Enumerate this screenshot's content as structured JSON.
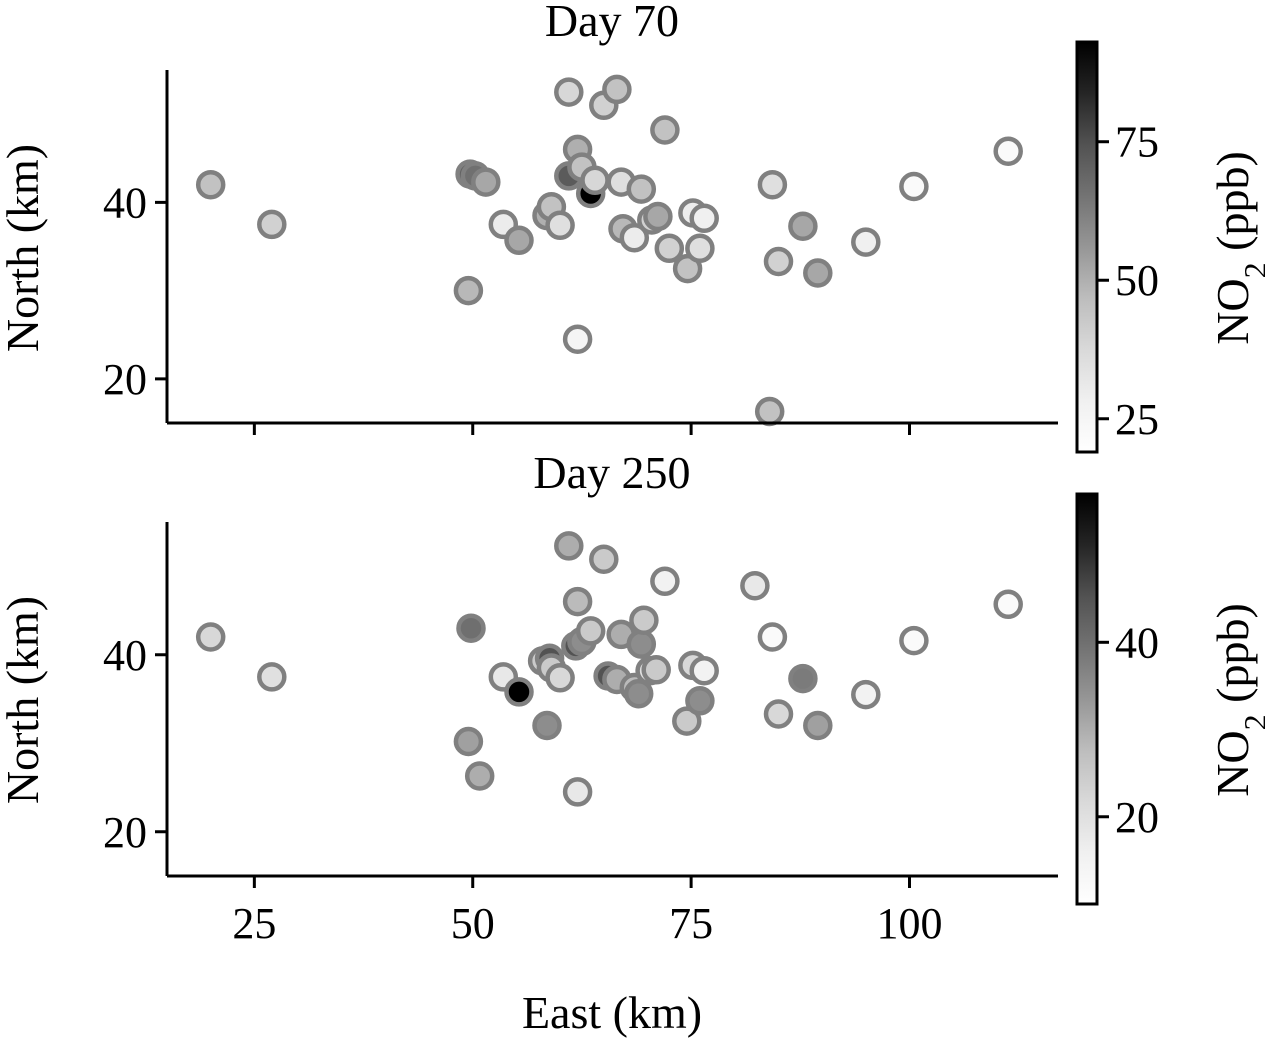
{
  "chart_data": [
    {
      "type": "scatter",
      "title": "Day 70",
      "xlabel": "",
      "ylabel": "North (km)",
      "xlim": [
        15,
        117
      ],
      "ylim": [
        15,
        55
      ],
      "x_ticks": [
        25,
        50,
        75,
        100
      ],
      "x_tick_labels_visible": false,
      "y_ticks": [
        20,
        40
      ],
      "colorbar": {
        "label_main": "NO",
        "label_sub": "2",
        "label_unit": " (ppb)",
        "range": [
          19,
          93
        ],
        "ticks": [
          25,
          50,
          75
        ],
        "colormap": "Greys"
      },
      "points": [
        {
          "x": 20,
          "y": 42,
          "v": 45
        },
        {
          "x": 27,
          "y": 37.5,
          "v": 40
        },
        {
          "x": 49.5,
          "y": 30,
          "v": 48
        },
        {
          "x": 49.7,
          "y": 43.2,
          "v": 70
        },
        {
          "x": 50.3,
          "y": 43.0,
          "v": 66
        },
        {
          "x": 51.5,
          "y": 42.3,
          "v": 52
        },
        {
          "x": 53.5,
          "y": 37.5,
          "v": 30
        },
        {
          "x": 55.3,
          "y": 35.7,
          "v": 52
        },
        {
          "x": 58.5,
          "y": 38.5,
          "v": 50
        },
        {
          "x": 59,
          "y": 39.5,
          "v": 45
        },
        {
          "x": 60,
          "y": 37.4,
          "v": 35
        },
        {
          "x": 61,
          "y": 52.5,
          "v": 38
        },
        {
          "x": 61,
          "y": 43,
          "v": 72
        },
        {
          "x": 62,
          "y": 24.5,
          "v": 25
        },
        {
          "x": 62,
          "y": 46,
          "v": 50
        },
        {
          "x": 62.5,
          "y": 44,
          "v": 45
        },
        {
          "x": 63.5,
          "y": 41,
          "v": 93
        },
        {
          "x": 64,
          "y": 42.5,
          "v": 38
        },
        {
          "x": 65,
          "y": 51,
          "v": 40
        },
        {
          "x": 66.5,
          "y": 52.8,
          "v": 45
        },
        {
          "x": 67,
          "y": 42.3,
          "v": 35
        },
        {
          "x": 67.2,
          "y": 37,
          "v": 48
        },
        {
          "x": 68.5,
          "y": 36,
          "v": 30
        },
        {
          "x": 69.3,
          "y": 41.5,
          "v": 45
        },
        {
          "x": 70.5,
          "y": 38,
          "v": 40
        },
        {
          "x": 71.2,
          "y": 38.4,
          "v": 52
        },
        {
          "x": 72,
          "y": 48.2,
          "v": 45
        },
        {
          "x": 72.5,
          "y": 34.8,
          "v": 40
        },
        {
          "x": 74.6,
          "y": 32.5,
          "v": 45
        },
        {
          "x": 75.2,
          "y": 38.8,
          "v": 30
        },
        {
          "x": 76,
          "y": 34.8,
          "v": 35
        },
        {
          "x": 76.5,
          "y": 38.2,
          "v": 28
        },
        {
          "x": 84,
          "y": 16.3,
          "v": 45
        },
        {
          "x": 84.3,
          "y": 42,
          "v": 35
        },
        {
          "x": 85,
          "y": 33.3,
          "v": 40
        },
        {
          "x": 87.8,
          "y": 37.3,
          "v": 52
        },
        {
          "x": 89.5,
          "y": 32,
          "v": 52
        },
        {
          "x": 95,
          "y": 35.5,
          "v": 28
        },
        {
          "x": 100.5,
          "y": 41.8,
          "v": 22
        },
        {
          "x": 111.3,
          "y": 45.8,
          "v": 22
        }
      ]
    },
    {
      "type": "scatter",
      "title": "Day 250",
      "xlabel": "East (km)",
      "ylabel": "North (km)",
      "xlim": [
        15,
        117
      ],
      "ylim": [
        15,
        55
      ],
      "x_ticks": [
        25,
        50,
        75,
        100
      ],
      "x_tick_labels_visible": true,
      "y_ticks": [
        20,
        40
      ],
      "colorbar": {
        "label_main": "NO",
        "label_sub": "2",
        "label_unit": " (ppb)",
        "range": [
          10,
          57
        ],
        "ticks": [
          20,
          40
        ],
        "colormap": "Greys"
      },
      "points": [
        {
          "x": 20,
          "y": 42,
          "v": 22
        },
        {
          "x": 27,
          "y": 37.5,
          "v": 20
        },
        {
          "x": 49.5,
          "y": 30.2,
          "v": 32
        },
        {
          "x": 49.8,
          "y": 43,
          "v": 40
        },
        {
          "x": 50.8,
          "y": 26.3,
          "v": 30
        },
        {
          "x": 53.5,
          "y": 37.5,
          "v": 18
        },
        {
          "x": 55.3,
          "y": 35.8,
          "v": 57
        },
        {
          "x": 58,
          "y": 39.3,
          "v": 25
        },
        {
          "x": 58.5,
          "y": 32,
          "v": 35
        },
        {
          "x": 58.8,
          "y": 39.6,
          "v": 45
        },
        {
          "x": 59,
          "y": 38.5,
          "v": 25
        },
        {
          "x": 60,
          "y": 37.4,
          "v": 22
        },
        {
          "x": 61,
          "y": 52.3,
          "v": 30
        },
        {
          "x": 61.8,
          "y": 41,
          "v": 45
        },
        {
          "x": 62,
          "y": 24.5,
          "v": 18
        },
        {
          "x": 62,
          "y": 46,
          "v": 28
        },
        {
          "x": 62.5,
          "y": 41.5,
          "v": 35
        },
        {
          "x": 63.5,
          "y": 42.7,
          "v": 25
        },
        {
          "x": 65,
          "y": 50.8,
          "v": 25
        },
        {
          "x": 65.5,
          "y": 37.6,
          "v": 45
        },
        {
          "x": 66.5,
          "y": 37.2,
          "v": 30
        },
        {
          "x": 67,
          "y": 42.3,
          "v": 30
        },
        {
          "x": 68.5,
          "y": 36.3,
          "v": 28
        },
        {
          "x": 69,
          "y": 35.6,
          "v": 35
        },
        {
          "x": 69.3,
          "y": 41.2,
          "v": 35
        },
        {
          "x": 69.6,
          "y": 43.9,
          "v": 25
        },
        {
          "x": 70.3,
          "y": 38.2,
          "v": 20
        },
        {
          "x": 71,
          "y": 38.3,
          "v": 25
        },
        {
          "x": 72,
          "y": 48.3,
          "v": 15
        },
        {
          "x": 74.5,
          "y": 32.5,
          "v": 25
        },
        {
          "x": 75.2,
          "y": 38.8,
          "v": 22
        },
        {
          "x": 76,
          "y": 34.8,
          "v": 35
        },
        {
          "x": 76.5,
          "y": 38.2,
          "v": 15
        },
        {
          "x": 82.3,
          "y": 47.8,
          "v": 18
        },
        {
          "x": 84.3,
          "y": 42,
          "v": 12
        },
        {
          "x": 85,
          "y": 33.3,
          "v": 22
        },
        {
          "x": 87.8,
          "y": 37.3,
          "v": 38
        },
        {
          "x": 89.5,
          "y": 32,
          "v": 32
        },
        {
          "x": 95,
          "y": 35.5,
          "v": 15
        },
        {
          "x": 100.5,
          "y": 41.6,
          "v": 12
        },
        {
          "x": 111.3,
          "y": 45.7,
          "v": 12
        }
      ]
    }
  ]
}
